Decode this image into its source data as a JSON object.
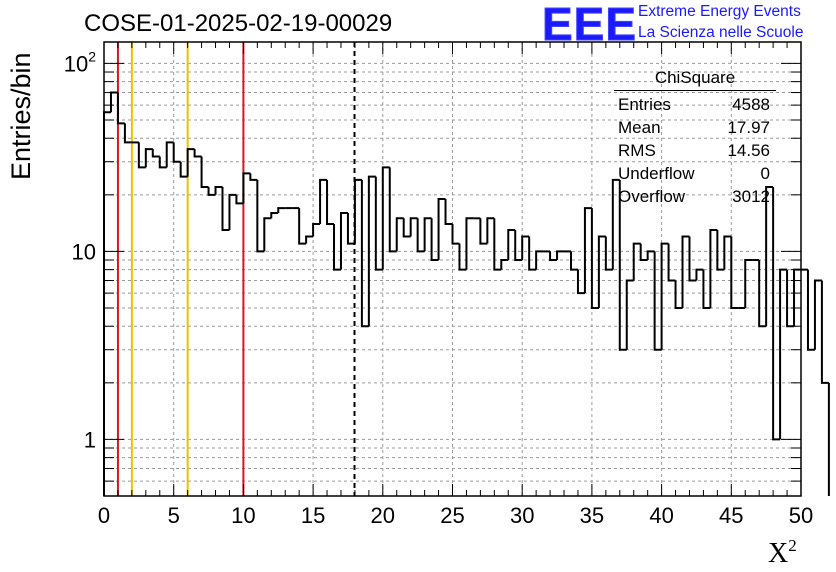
{
  "header": {
    "title": "COSE-01-2025-02-19-00029",
    "logo_text": "EEE",
    "logo_line1": "Extreme Energy Events",
    "logo_line2": "La Scienza nelle Scuole",
    "logo_color": "#1a1aff"
  },
  "stats_box": {
    "title": "ChiSquare",
    "rows": [
      {
        "label": "Entries",
        "value": "4588"
      },
      {
        "label": "Mean",
        "value": "17.97"
      },
      {
        "label": "RMS",
        "value": "14.56"
      },
      {
        "label": "Underflow",
        "value": "0"
      },
      {
        "label": "Overflow",
        "value": "3012"
      }
    ]
  },
  "chart_data": {
    "type": "histogram",
    "xlabel": "X",
    "xlabel_sup": "2",
    "ylabel": "Entries/bin",
    "xlim": [
      0,
      50
    ],
    "ylim": [
      0.5,
      130
    ],
    "yscale": "log",
    "grid": true,
    "x_ticks": [
      "0",
      "5",
      "10",
      "15",
      "20",
      "25",
      "30",
      "35",
      "40",
      "45",
      "50"
    ],
    "y_ticks": [
      {
        "value": 1,
        "label": "1"
      },
      {
        "value": 10,
        "label": "10"
      },
      {
        "value": 100,
        "label": "10",
        "sup": "2"
      }
    ],
    "bin_width": 0.5,
    "bin_start": 0,
    "values": [
      55,
      70,
      48,
      38,
      38,
      28,
      35,
      32,
      28,
      38,
      30,
      25,
      35,
      32,
      22,
      20,
      22,
      13,
      20,
      18,
      26,
      24,
      10,
      15,
      16,
      17,
      17,
      17,
      11,
      12,
      14,
      24,
      14,
      8,
      16,
      11,
      24,
      4,
      25,
      8,
      28,
      10,
      15,
      12,
      15,
      10,
      15,
      9,
      19,
      14,
      11,
      8,
      15,
      15,
      11,
      15,
      8,
      9,
      13,
      9,
      12,
      8,
      10,
      10,
      9,
      10,
      10,
      8,
      6,
      17,
      5,
      12,
      8,
      24,
      3,
      7,
      11,
      9,
      10,
      3,
      11,
      7,
      5,
      12,
      7,
      8,
      5,
      13,
      8,
      12,
      5,
      5,
      9,
      9,
      4,
      22,
      1,
      8,
      4,
      8,
      8,
      3,
      7,
      2
    ],
    "vertical_lines": [
      {
        "x": 1,
        "color": "#d81818",
        "style": "solid"
      },
      {
        "x": 2,
        "color": "#f0c000",
        "style": "solid"
      },
      {
        "x": 6,
        "color": "#f0c000",
        "style": "solid"
      },
      {
        "x": 10,
        "color": "#d81818",
        "style": "solid"
      },
      {
        "x": 17.97,
        "color": "#000000",
        "style": "dashed"
      }
    ]
  }
}
